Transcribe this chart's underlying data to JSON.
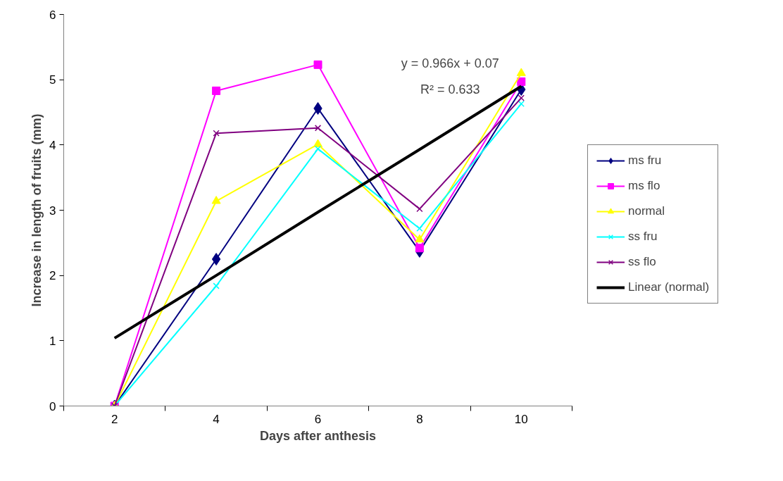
{
  "chart_data": {
    "type": "line",
    "xlabel": "Days after anthesis",
    "ylabel": "Increase in length of fruits (mm)",
    "categories": [
      "2",
      "4",
      "6",
      "8",
      "10"
    ],
    "ylim": [
      0,
      6
    ],
    "yticks": [
      0,
      1,
      2,
      3,
      4,
      5,
      6
    ],
    "grid": false,
    "legend": "right",
    "annotations": [
      "y = 0.966x + 0.07",
      "R² = 0.633"
    ],
    "series": [
      {
        "name": "ms fru",
        "color": "#000080",
        "marker": "diamond",
        "values": [
          0,
          2.25,
          4.56,
          2.37,
          4.85
        ]
      },
      {
        "name": "ms flo",
        "color": "#ff00ff",
        "marker": "square",
        "values": [
          0,
          4.83,
          5.23,
          2.42,
          4.97
        ]
      },
      {
        "name": "normal",
        "color": "#ffff00",
        "marker": "triangle",
        "values": [
          0,
          3.14,
          4.01,
          2.55,
          5.1
        ]
      },
      {
        "name": "ss fru",
        "color": "#00ffff",
        "marker": "cross",
        "values": [
          0,
          1.84,
          3.94,
          2.72,
          4.63
        ]
      },
      {
        "name": "ss flo",
        "color": "#800080",
        "marker": "cross",
        "values": [
          0,
          4.18,
          4.26,
          3.02,
          4.72
        ]
      },
      {
        "name": "Linear (normal)",
        "color": "#000000",
        "marker": "none",
        "values": [
          1.04,
          2.0,
          2.97,
          3.93,
          4.9
        ]
      }
    ]
  }
}
